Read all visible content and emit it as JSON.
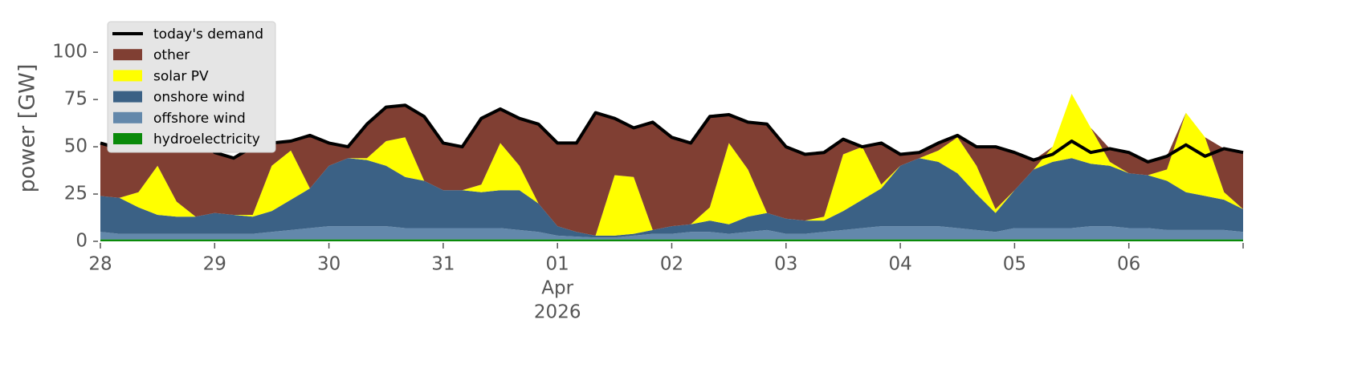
{
  "chart_data": {
    "type": "stacked_area",
    "ylabel": "power [GW]",
    "xlim": [
      0,
      240
    ],
    "xticks": [
      {
        "value": 0,
        "label": "28"
      },
      {
        "value": 24,
        "label": "29"
      },
      {
        "value": 48,
        "label": "30"
      },
      {
        "value": 72,
        "label": "31"
      },
      {
        "value": 96,
        "label": "01",
        "sublabels": [
          "Apr",
          "2026"
        ]
      },
      {
        "value": 120,
        "label": "02"
      },
      {
        "value": 144,
        "label": "03"
      },
      {
        "value": 168,
        "label": "04"
      },
      {
        "value": 192,
        "label": "05"
      },
      {
        "value": 216,
        "label": "06"
      },
      {
        "value": 240,
        "label": ""
      }
    ],
    "ylim": [
      0,
      120
    ],
    "yticks": [
      0,
      25,
      50,
      75,
      100
    ],
    "legend": "upper left",
    "x": [
      0,
      4,
      8,
      12,
      16,
      20,
      24,
      28,
      32,
      36,
      40,
      44,
      48,
      52,
      56,
      60,
      64,
      68,
      72,
      76,
      80,
      84,
      88,
      92,
      96,
      100,
      104,
      108,
      112,
      116,
      120,
      124,
      128,
      132,
      136,
      140,
      144,
      148,
      152,
      156,
      160,
      164,
      168,
      172,
      176,
      180,
      184,
      188,
      192,
      196,
      200,
      204,
      208,
      212,
      216,
      220,
      224,
      228,
      232,
      236,
      240
    ],
    "series": [
      {
        "name": "today's demand",
        "type": "line",
        "color": "#000000",
        "values": [
          52,
          49,
          55,
          60,
          57,
          58,
          47,
          44,
          50,
          52,
          53,
          56,
          52,
          50,
          62,
          71,
          72,
          66,
          52,
          50,
          65,
          70,
          65,
          62,
          52,
          52,
          68,
          65,
          60,
          63,
          55,
          52,
          66,
          67,
          63,
          62,
          50,
          46,
          47,
          54,
          50,
          52,
          46,
          47,
          52,
          56,
          50,
          50,
          47,
          43,
          46,
          53,
          47,
          49,
          47,
          42,
          45,
          51,
          45,
          49,
          47
        ]
      },
      {
        "name": "other",
        "type": "area",
        "color": "#803f33",
        "values": [
          28,
          26,
          29,
          20,
          36,
          45,
          32,
          30,
          36,
          12,
          5,
          28,
          12,
          6,
          18,
          18,
          17,
          34,
          25,
          23,
          35,
          18,
          25,
          42,
          44,
          47,
          65,
          30,
          26,
          57,
          47,
          43,
          48,
          15,
          25,
          47,
          38,
          35,
          34,
          8,
          0,
          22,
          6,
          3,
          4,
          1,
          10,
          33,
          20,
          5,
          0,
          0,
          0,
          7,
          11,
          7,
          7,
          0,
          0,
          23,
          30
        ]
      },
      {
        "name": "solar PV",
        "type": "area",
        "color": "#ffff00",
        "values": [
          0,
          0,
          8,
          26,
          8,
          0,
          0,
          0,
          1,
          24,
          26,
          0,
          0,
          0,
          1,
          13,
          21,
          0,
          0,
          0,
          4,
          25,
          13,
          0,
          0,
          0,
          0,
          32,
          30,
          0,
          0,
          0,
          7,
          43,
          25,
          0,
          0,
          0,
          2,
          30,
          28,
          2,
          0,
          0,
          6,
          19,
          15,
          2,
          0,
          0,
          8,
          34,
          19,
          2,
          0,
          0,
          6,
          42,
          31,
          4,
          0
        ]
      },
      {
        "name": "onshore wind",
        "type": "area",
        "color": "#3b6185",
        "values": [
          19,
          19,
          14,
          10,
          9,
          9,
          11,
          10,
          9,
          11,
          16,
          21,
          32,
          36,
          35,
          32,
          27,
          25,
          20,
          20,
          19,
          20,
          21,
          15,
          5,
          2.5,
          1,
          1,
          1,
          2,
          4,
          4,
          6,
          5,
          8,
          9,
          8,
          7,
          6,
          10,
          15,
          20,
          32,
          36,
          34,
          29,
          19,
          10,
          20,
          31,
          35,
          37,
          33,
          32,
          29,
          28,
          26,
          20,
          18,
          16,
          12
        ]
      },
      {
        "name": "offshore wind",
        "type": "area",
        "color": "#6388ab",
        "values": [
          4,
          3,
          3,
          3,
          3,
          3,
          3,
          3,
          3,
          4,
          5,
          6,
          7,
          7,
          7,
          7,
          6,
          6,
          6,
          6,
          6,
          6,
          5,
          4,
          2,
          1.5,
          1,
          1,
          2,
          3,
          3,
          4,
          4,
          3,
          4,
          5,
          3,
          3,
          4,
          5,
          6,
          7,
          7,
          7,
          7,
          6,
          5,
          4,
          6,
          6,
          6,
          6,
          7,
          7,
          6,
          6,
          5,
          5,
          5,
          5,
          4
        ]
      },
      {
        "name": "hydroelectricity",
        "type": "area",
        "color": "#0a8a0a",
        "values": [
          1,
          1,
          1,
          1,
          1,
          1,
          1,
          1,
          1,
          1,
          1,
          1,
          1,
          1,
          1,
          1,
          1,
          1,
          1,
          1,
          1,
          1,
          1,
          1,
          1,
          1,
          1,
          1,
          1,
          1,
          1,
          1,
          1,
          1,
          1,
          1,
          1,
          1,
          1,
          1,
          1,
          1,
          1,
          1,
          1,
          1,
          1,
          1,
          1,
          1,
          1,
          1,
          1,
          1,
          1,
          1,
          1,
          1,
          1,
          1,
          1
        ]
      }
    ]
  }
}
